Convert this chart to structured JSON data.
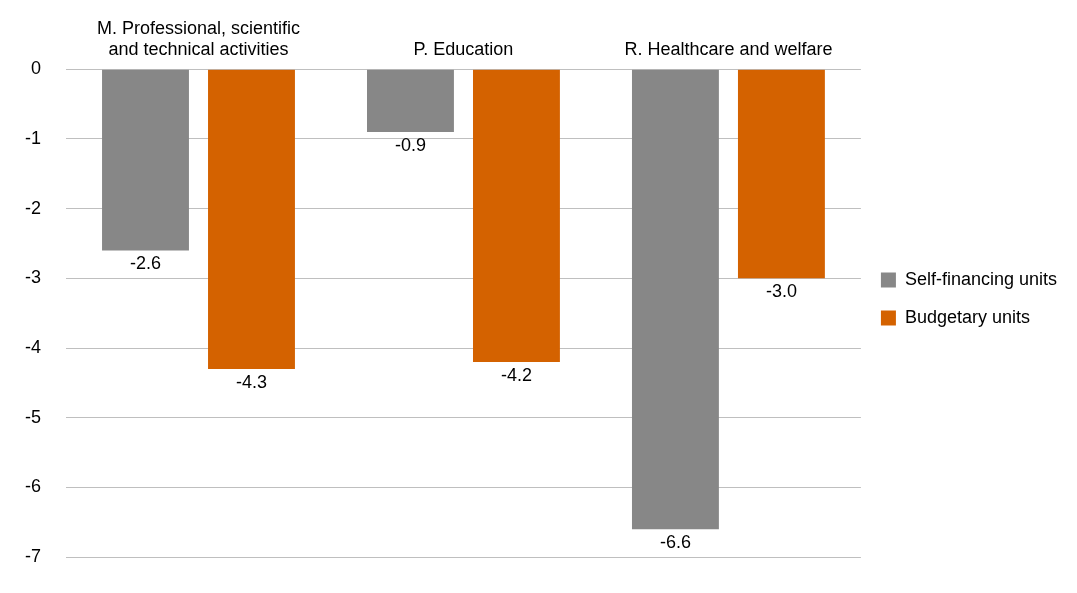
{
  "chart_data": {
    "type": "bar",
    "categories": [
      "M. Professional, scientific and technical activities",
      "P. Education",
      "R. Healthcare and welfare"
    ],
    "series": [
      {
        "name": "Self-financing units",
        "color": "#878787",
        "values": [
          -2.6,
          -0.9,
          -6.6
        ],
        "value_labels": [
          "-2.6",
          "-0.9",
          "-6.6"
        ]
      },
      {
        "name": "Budgetary units",
        "color": "#d46200",
        "values": [
          -4.3,
          -4.2,
          -3.0
        ],
        "value_labels": [
          "-4.3",
          "-4.2",
          "-3.0"
        ]
      }
    ],
    "ylim": [
      -7,
      0
    ],
    "yticks": [
      0,
      -1,
      -2,
      -3,
      -4,
      -5,
      -6,
      -7
    ],
    "grid": "y",
    "legend": "right"
  }
}
